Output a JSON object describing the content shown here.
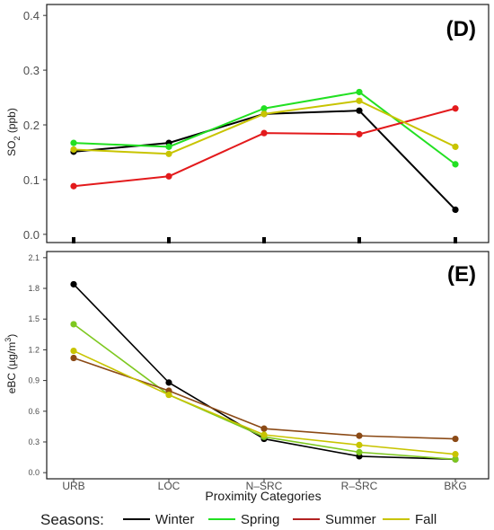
{
  "chart_data": [
    {
      "type": "line",
      "panel_label": "(D)",
      "ylabel_main": "SO",
      "ylabel_sub": "2",
      "ylabel_unit": " (ppb)",
      "ylim": [
        -0.015,
        0.42
      ],
      "yticks": [
        0.0,
        0.1,
        0.2,
        0.3,
        0.4
      ],
      "ytick_labels": [
        "0.0",
        "0.1",
        "0.2",
        "0.3",
        "0.4"
      ],
      "categories": [
        "URB",
        "LOC",
        "N–SRC",
        "R–SRC",
        "BKG"
      ],
      "show_x_labels": false,
      "series": [
        {
          "name": "Winter",
          "color": "#000000",
          "values": [
            0.151,
            0.167,
            0.22,
            0.226,
            0.045
          ]
        },
        {
          "name": "Spring",
          "color": "#22e022",
          "values": [
            0.167,
            0.16,
            0.23,
            0.26,
            0.128
          ]
        },
        {
          "name": "Summer",
          "color": "#e31a1c",
          "values": [
            0.088,
            0.106,
            0.185,
            0.183,
            0.23
          ]
        },
        {
          "name": "Fall",
          "color": "#c8c400",
          "values": [
            0.155,
            0.147,
            0.22,
            0.244,
            0.16
          ]
        }
      ]
    },
    {
      "type": "line",
      "panel_label": "(E)",
      "ylabel_main": "eBC (µg/m",
      "ylabel_sup": "3",
      "ylabel_unit": ")",
      "ylim": [
        -0.06,
        2.16
      ],
      "yticks": [
        0.0,
        0.3,
        0.6,
        0.9,
        1.2,
        1.5,
        1.8,
        2.1
      ],
      "ytick_labels": [
        "0.0",
        "0.3",
        "0.6",
        "0.9",
        "1.2",
        "1.5",
        "1.8",
        "2.1"
      ],
      "categories": [
        "URB",
        "LOC",
        "N–SRC",
        "R–SRC",
        "BKG"
      ],
      "show_x_labels": true,
      "xlabel": "Proximity Categories",
      "series": [
        {
          "name": "Winter",
          "color": "#000000",
          "values": [
            1.84,
            0.88,
            0.33,
            0.16,
            0.13
          ]
        },
        {
          "name": "Spring",
          "color": "#7ec820",
          "values": [
            1.45,
            0.76,
            0.35,
            0.2,
            0.13
          ]
        },
        {
          "name": "Summer",
          "color": "#8b4a16",
          "values": [
            1.12,
            0.8,
            0.43,
            0.36,
            0.33
          ]
        },
        {
          "name": "Fall",
          "color": "#c8c400",
          "values": [
            1.19,
            0.76,
            0.37,
            0.27,
            0.18
          ]
        }
      ]
    }
  ],
  "legend": {
    "title": "Seasons:",
    "position": "bottom",
    "items": [
      {
        "name": "Winter",
        "color": "#000000"
      },
      {
        "name": "Spring",
        "color": "#22e022"
      },
      {
        "name": "Summer",
        "color": "#b22222"
      },
      {
        "name": "Fall",
        "color": "#c8c400"
      }
    ]
  }
}
